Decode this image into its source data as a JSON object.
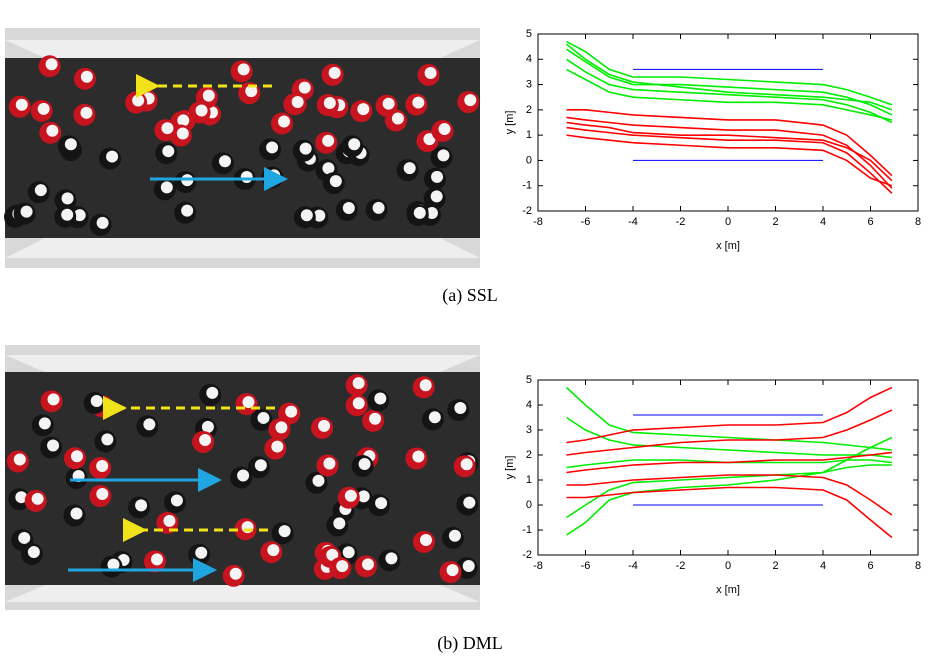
{
  "captions": [
    "(a) SSL",
    "(b) DML"
  ],
  "chart_data": [
    {
      "type": "line",
      "xlabel": "x [m]",
      "ylabel": "y [m]",
      "xlim": [
        -8,
        8
      ],
      "ylim": [
        -2,
        5
      ],
      "xticks": [
        -8,
        -6,
        -4,
        -2,
        0,
        2,
        4,
        6,
        8
      ],
      "yticks": [
        -2,
        -1,
        0,
        1,
        2,
        3,
        4,
        5
      ],
      "series": [
        {
          "color": "#0000ff",
          "x": [
            -4,
            4
          ],
          "values": [
            3.6,
            3.6
          ]
        },
        {
          "color": "#0000ff",
          "x": [
            -4,
            4
          ],
          "values": [
            0,
            0
          ]
        },
        {
          "color": "#00ee00",
          "x": [
            -6.8,
            -6,
            -5,
            -4,
            -2,
            0,
            2,
            4,
            5,
            6,
            6.9
          ],
          "values": [
            4.7,
            4.3,
            3.6,
            3.3,
            3.3,
            3.2,
            3.1,
            3.0,
            2.8,
            2.5,
            2.2
          ]
        },
        {
          "color": "#00ee00",
          "x": [
            -6.8,
            -6,
            -5,
            -4,
            -2,
            0,
            2,
            4,
            5,
            6,
            6.9
          ],
          "values": [
            4.4,
            3.9,
            3.3,
            3.0,
            3.0,
            2.9,
            2.8,
            2.7,
            2.5,
            2.2,
            1.8
          ]
        },
        {
          "color": "#00ee00",
          "x": [
            -6.8,
            -6,
            -5,
            -4,
            -2,
            0,
            2,
            4,
            5,
            6,
            6.9
          ],
          "values": [
            4.0,
            3.5,
            3.0,
            2.8,
            2.7,
            2.6,
            2.5,
            2.4,
            2.2,
            1.9,
            1.5
          ]
        },
        {
          "color": "#00ee00",
          "x": [
            -6.8,
            -6,
            -5,
            -4,
            -2,
            0,
            2,
            4,
            5,
            6,
            6.9
          ],
          "values": [
            3.6,
            3.2,
            2.7,
            2.5,
            2.4,
            2.3,
            2.3,
            2.2,
            2.0,
            1.8,
            1.6
          ]
        },
        {
          "color": "#00ee00",
          "x": [
            -6.8,
            -6,
            -5,
            -4,
            -2,
            0,
            2,
            4,
            5,
            6,
            6.9
          ],
          "values": [
            4.6,
            4.0,
            3.4,
            3.1,
            2.9,
            2.7,
            2.6,
            2.5,
            2.4,
            2.3,
            2.0
          ]
        },
        {
          "color": "#ff0000",
          "x": [
            -6.8,
            -6,
            -5,
            -4,
            -2,
            0,
            2,
            4,
            5,
            6,
            6.9
          ],
          "values": [
            2.0,
            2.0,
            1.9,
            1.8,
            1.7,
            1.6,
            1.6,
            1.4,
            1.0,
            0.2,
            -0.6
          ]
        },
        {
          "color": "#ff0000",
          "x": [
            -6.8,
            -6,
            -5,
            -4,
            -2,
            0,
            2,
            4,
            5,
            6,
            6.9
          ],
          "values": [
            1.7,
            1.6,
            1.5,
            1.4,
            1.3,
            1.2,
            1.2,
            1.0,
            0.6,
            -0.2,
            -1.1
          ]
        },
        {
          "color": "#ff0000",
          "x": [
            -6.8,
            -6,
            -5,
            -4,
            -2,
            0,
            2,
            4,
            5,
            6,
            6.9
          ],
          "values": [
            1.3,
            1.2,
            1.1,
            1.0,
            0.9,
            0.8,
            0.8,
            0.7,
            0.3,
            -0.5,
            -1.3
          ]
        },
        {
          "color": "#ff0000",
          "x": [
            -6.8,
            -6,
            -5,
            -4,
            -2,
            0,
            2,
            4,
            5,
            6,
            6.9
          ],
          "values": [
            1.0,
            0.9,
            0.8,
            0.7,
            0.6,
            0.5,
            0.5,
            0.4,
            0.0,
            -0.7,
            -1.0
          ]
        },
        {
          "color": "#ff0000",
          "x": [
            -6.8,
            -6,
            -5,
            -4,
            -2,
            0,
            2,
            4,
            5,
            6,
            6.9
          ],
          "values": [
            1.5,
            1.4,
            1.3,
            1.1,
            1.0,
            1.0,
            0.9,
            0.8,
            0.5,
            0.0,
            -0.8
          ]
        }
      ]
    },
    {
      "type": "line",
      "xlabel": "x [m]",
      "ylabel": "y [m]",
      "xlim": [
        -8,
        8
      ],
      "ylim": [
        -2,
        5
      ],
      "xticks": [
        -8,
        -6,
        -4,
        -2,
        0,
        2,
        4,
        6,
        8
      ],
      "yticks": [
        -2,
        -1,
        0,
        1,
        2,
        3,
        4,
        5
      ],
      "series": [
        {
          "color": "#0000ff",
          "x": [
            -4,
            4
          ],
          "values": [
            3.6,
            3.6
          ]
        },
        {
          "color": "#0000ff",
          "x": [
            -4,
            4
          ],
          "values": [
            0,
            0
          ]
        },
        {
          "color": "#00ee00",
          "x": [
            -6.8,
            -6,
            -5,
            -4,
            -2,
            0,
            2,
            4,
            5,
            6,
            6.9
          ],
          "values": [
            4.7,
            4.0,
            3.2,
            2.9,
            2.8,
            2.7,
            2.6,
            2.5,
            2.4,
            2.3,
            2.2
          ]
        },
        {
          "color": "#00ee00",
          "x": [
            -6.8,
            -6,
            -5,
            -4,
            -2,
            0,
            2,
            4,
            5,
            6,
            6.9
          ],
          "values": [
            3.5,
            3.0,
            2.6,
            2.4,
            2.3,
            2.2,
            2.1,
            2.0,
            2.0,
            2.0,
            1.9
          ]
        },
        {
          "color": "#00ee00",
          "x": [
            -6.8,
            -6,
            -5,
            -4,
            -2,
            0,
            2,
            4,
            5,
            6,
            6.9
          ],
          "values": [
            1.5,
            1.6,
            1.7,
            1.8,
            1.8,
            1.7,
            1.7,
            1.7,
            1.8,
            1.8,
            1.7
          ]
        },
        {
          "color": "#00ee00",
          "x": [
            -6.8,
            -6,
            -5,
            -4,
            -2,
            0,
            2,
            4,
            5,
            6,
            6.9
          ],
          "values": [
            -0.5,
            0.0,
            0.6,
            0.9,
            1.0,
            1.1,
            1.2,
            1.3,
            1.5,
            1.6,
            1.6
          ]
        },
        {
          "color": "#00ee00",
          "x": [
            -6.8,
            -6,
            -5,
            -4,
            -2,
            0,
            2,
            4,
            5,
            6,
            6.9
          ],
          "values": [
            -1.2,
            -0.7,
            0.2,
            0.5,
            0.7,
            0.8,
            1.0,
            1.3,
            1.8,
            2.3,
            2.7
          ]
        },
        {
          "color": "#ff0000",
          "x": [
            -6.8,
            -6,
            -5,
            -4,
            -2,
            0,
            2,
            4,
            5,
            6,
            6.9
          ],
          "values": [
            2.5,
            2.6,
            2.8,
            3.0,
            3.1,
            3.2,
            3.2,
            3.3,
            3.7,
            4.3,
            4.7
          ]
        },
        {
          "color": "#ff0000",
          "x": [
            -6.8,
            -6,
            -5,
            -4,
            -2,
            0,
            2,
            4,
            5,
            6,
            6.9
          ],
          "values": [
            2.0,
            2.1,
            2.2,
            2.3,
            2.5,
            2.6,
            2.6,
            2.7,
            3.0,
            3.4,
            3.8
          ]
        },
        {
          "color": "#ff0000",
          "x": [
            -6.8,
            -6,
            -5,
            -4,
            -2,
            0,
            2,
            4,
            5,
            6,
            6.9
          ],
          "values": [
            1.3,
            1.4,
            1.5,
            1.6,
            1.7,
            1.7,
            1.8,
            1.8,
            1.9,
            2.0,
            2.1
          ]
        },
        {
          "color": "#ff0000",
          "x": [
            -6.8,
            -6,
            -5,
            -4,
            -2,
            0,
            2,
            4,
            5,
            6,
            6.9
          ],
          "values": [
            0.8,
            0.8,
            0.9,
            1.0,
            1.1,
            1.2,
            1.2,
            1.1,
            0.8,
            0.2,
            -0.4
          ]
        },
        {
          "color": "#ff0000",
          "x": [
            -6.8,
            -6,
            -5,
            -4,
            -2,
            0,
            2,
            4,
            5,
            6,
            6.9
          ],
          "values": [
            0.3,
            0.3,
            0.4,
            0.5,
            0.6,
            0.7,
            0.7,
            0.6,
            0.2,
            -0.6,
            -1.3
          ]
        }
      ]
    }
  ]
}
